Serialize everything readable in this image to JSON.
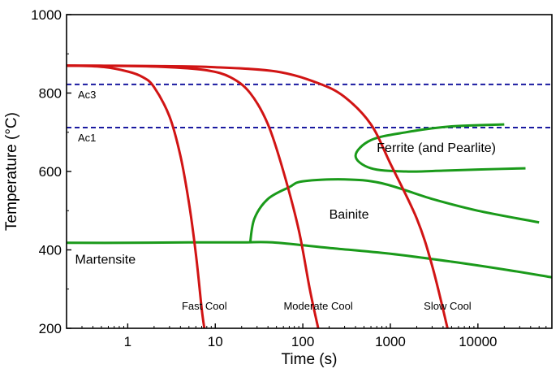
{
  "chart_data": {
    "type": "line",
    "xlabel": "Time (s)",
    "ylabel": "Temperature (°C)",
    "x_scale": "log",
    "xlim": [
      0.2,
      70000
    ],
    "ylim": [
      200,
      1000
    ],
    "x_ticks": [
      1,
      10,
      100,
      1000,
      10000
    ],
    "x_tick_labels": [
      "1",
      "10",
      "100",
      "1000",
      "10000"
    ],
    "y_ticks": [
      200,
      400,
      600,
      800,
      1000
    ],
    "y_tick_labels": [
      "200",
      "400",
      "600",
      "800",
      "1000"
    ],
    "grid": false,
    "reference_lines": [
      {
        "label": "Ac3",
        "y": 822,
        "color": "#1a1aa0"
      },
      {
        "label": "Ac1",
        "y": 712,
        "color": "#1a1aa0"
      }
    ],
    "cooling_curves": [
      {
        "label": "Fast Cool",
        "color": "#d11414",
        "x": [
          0.2,
          0.5,
          1,
          1.5,
          2,
          3,
          4,
          5,
          6,
          7,
          7.5
        ],
        "y": [
          870,
          867,
          855,
          840,
          815,
          740,
          640,
          520,
          390,
          250,
          200
        ]
      },
      {
        "label": "Moderate Cool",
        "color": "#d11414",
        "x": [
          0.2,
          1,
          3,
          8,
          15,
          25,
          40,
          60,
          90,
          120,
          150
        ],
        "y": [
          870,
          869,
          866,
          858,
          840,
          800,
          720,
          600,
          450,
          300,
          200
        ]
      },
      {
        "label": "Slow Cool",
        "color": "#d11414",
        "x": [
          0.2,
          2,
          10,
          50,
          150,
          300,
          600,
          1000,
          2000,
          3000,
          4500
        ],
        "y": [
          870,
          869,
          866,
          855,
          825,
          790,
          720,
          620,
          480,
          360,
          200
        ]
      }
    ],
    "phase_boundaries": [
      {
        "name": "ferrite-nose",
        "color": "#1a9a1a",
        "x": [
          20000,
          5000,
          1500,
          600,
          400,
          600,
          1500,
          4000,
          10000,
          35000
        ],
        "y": [
          720,
          715,
          700,
          680,
          640,
          608,
          600,
          602,
          605,
          608
        ]
      },
      {
        "name": "bainite-nose",
        "color": "#1a9a1a",
        "x": [
          25,
          28,
          40,
          70,
          100,
          300,
          800,
          3000,
          10000,
          50000
        ],
        "y": [
          418,
          480,
          530,
          560,
          575,
          580,
          570,
          530,
          500,
          470
        ]
      },
      {
        "name": "martensite-start",
        "color": "#1a9a1a",
        "x": [
          0.2,
          1,
          5,
          20,
          45,
          200,
          1000,
          5000,
          20000,
          70000
        ],
        "y": [
          418,
          418,
          419,
          419,
          419,
          405,
          390,
          370,
          350,
          330
        ]
      }
    ],
    "region_labels": [
      {
        "text": "Ferrite (and Pearlite)",
        "x": 700,
        "y": 650
      },
      {
        "text": "Bainite",
        "x": 200,
        "y": 480
      },
      {
        "text": "Martensite",
        "x": 0.25,
        "y": 365
      }
    ]
  }
}
